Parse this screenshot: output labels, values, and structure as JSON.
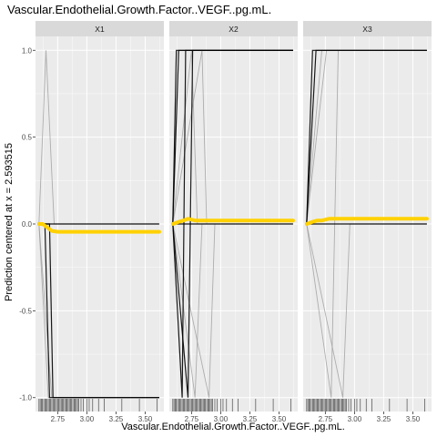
{
  "chart_data": {
    "type": "line",
    "title": "Vascular.Endothelial.Growth.Factor..VEGF..pg.mL.",
    "xlabel": "Vascular.Endothelial.Growth.Factor..VEGF..pg.mL.",
    "ylabel": "Prediction centered at x = 2.593515",
    "xlim": [
      2.56,
      3.66
    ],
    "ylim": [
      -1.08,
      1.08
    ],
    "x_ticks": [
      2.75,
      3.0,
      3.25,
      3.5
    ],
    "x_tick_labels": [
      "2.75",
      "3.00",
      "3.25",
      "3.50"
    ],
    "y_ticks": [
      -1.0,
      -0.5,
      0.0,
      0.5,
      1.0
    ],
    "y_tick_labels": [
      "-1.0",
      "-0.5",
      "0.0",
      "0.5",
      "1.0"
    ],
    "grid": true,
    "colors": {
      "panel_bg": "#ebebeb",
      "grid_major": "#ffffff",
      "strip_bg": "#d9d9d9",
      "ice_dark": "#000000",
      "ice_light": "#9e9e9e",
      "pdp": "#ffd100",
      "rug": "#000000"
    },
    "facets": [
      {
        "label": "X1",
        "ice_lines": [
          {
            "shade": "dark",
            "points": [
              [
                2.59,
                0
              ],
              [
                2.64,
                0
              ],
              [
                2.68,
                -1
              ],
              [
                3.62,
                -1
              ]
            ]
          },
          {
            "shade": "dark",
            "points": [
              [
                2.59,
                0
              ],
              [
                2.68,
                0
              ],
              [
                2.71,
                -1
              ],
              [
                3.62,
                -1
              ]
            ]
          },
          {
            "shade": "dark",
            "points": [
              [
                2.59,
                0
              ],
              [
                3.62,
                0
              ]
            ]
          },
          {
            "shade": "light",
            "points": [
              [
                2.59,
                0
              ],
              [
                2.65,
                1
              ],
              [
                2.72,
                0
              ],
              [
                3.62,
                0
              ]
            ]
          },
          {
            "shade": "light",
            "points": [
              [
                2.59,
                0
              ],
              [
                2.67,
                -1
              ],
              [
                3.62,
                -1
              ]
            ]
          },
          {
            "shade": "light",
            "points": [
              [
                2.59,
                0
              ],
              [
                2.7,
                -1
              ],
              [
                2.78,
                -1
              ],
              [
                2.8,
                -1
              ],
              [
                3.62,
                -1
              ]
            ]
          }
        ],
        "pdp": [
          [
            2.59,
            0
          ],
          [
            2.62,
            0
          ],
          [
            2.66,
            -0.02
          ],
          [
            2.7,
            -0.04
          ],
          [
            2.75,
            -0.045
          ],
          [
            3.0,
            -0.045
          ],
          [
            3.62,
            -0.045
          ]
        ],
        "rug": [
          2.59,
          2.6,
          2.61,
          2.62,
          2.63,
          2.64,
          2.65,
          2.66,
          2.67,
          2.68,
          2.69,
          2.7,
          2.71,
          2.72,
          2.73,
          2.74,
          2.75,
          2.76,
          2.77,
          2.78,
          2.79,
          2.8,
          2.81,
          2.82,
          2.83,
          2.84,
          2.85,
          2.86,
          2.87,
          2.88,
          2.89,
          2.9,
          2.91,
          2.92,
          2.93,
          2.95,
          2.97,
          3.0,
          3.02,
          3.05,
          3.1,
          3.15,
          3.3,
          3.45,
          3.6
        ]
      },
      {
        "label": "X2",
        "ice_lines": [
          {
            "shade": "dark",
            "points": [
              [
                2.59,
                0
              ],
              [
                2.62,
                1
              ],
              [
                3.62,
                1
              ]
            ]
          },
          {
            "shade": "dark",
            "points": [
              [
                2.59,
                0
              ],
              [
                2.64,
                1
              ],
              [
                3.62,
                1
              ]
            ]
          },
          {
            "shade": "dark",
            "points": [
              [
                2.59,
                0
              ],
              [
                2.67,
                -1
              ],
              [
                2.7,
                1
              ],
              [
                3.62,
                1
              ]
            ]
          },
          {
            "shade": "dark",
            "points": [
              [
                2.59,
                0
              ],
              [
                2.72,
                -1
              ],
              [
                2.76,
                1
              ],
              [
                3.62,
                1
              ]
            ]
          },
          {
            "shade": "dark",
            "points": [
              [
                2.59,
                0
              ],
              [
                3.62,
                0
              ]
            ]
          },
          {
            "shade": "light",
            "points": [
              [
                2.59,
                0
              ],
              [
                2.75,
                1
              ],
              [
                2.8,
                0
              ],
              [
                3.62,
                0
              ]
            ]
          },
          {
            "shade": "light",
            "points": [
              [
                2.59,
                0
              ],
              [
                2.78,
                -1
              ],
              [
                2.84,
                0
              ],
              [
                3.62,
                0
              ]
            ]
          },
          {
            "shade": "light",
            "points": [
              [
                2.59,
                0
              ],
              [
                2.84,
                1
              ],
              [
                2.88,
                0
              ],
              [
                3.62,
                0
              ]
            ]
          },
          {
            "shade": "light",
            "points": [
              [
                2.59,
                0
              ],
              [
                2.9,
                -1
              ],
              [
                2.95,
                0
              ],
              [
                3.62,
                0
              ]
            ]
          }
        ],
        "pdp": [
          [
            2.59,
            0
          ],
          [
            2.63,
            0.01
          ],
          [
            2.68,
            0.02
          ],
          [
            2.72,
            0.03
          ],
          [
            2.78,
            0.02
          ],
          [
            2.85,
            0.02
          ],
          [
            3.0,
            0.02
          ],
          [
            3.62,
            0.02
          ]
        ],
        "rug": [
          2.59,
          2.6,
          2.61,
          2.62,
          2.63,
          2.64,
          2.65,
          2.66,
          2.67,
          2.68,
          2.69,
          2.7,
          2.71,
          2.72,
          2.73,
          2.74,
          2.75,
          2.76,
          2.77,
          2.78,
          2.79,
          2.8,
          2.81,
          2.82,
          2.83,
          2.84,
          2.85,
          2.86,
          2.87,
          2.88,
          2.89,
          2.9,
          2.91,
          2.92,
          2.93,
          2.95,
          2.97,
          3.0,
          3.02,
          3.05,
          3.1,
          3.15,
          3.3,
          3.45,
          3.6
        ]
      },
      {
        "label": "X3",
        "ice_lines": [
          {
            "shade": "dark",
            "points": [
              [
                2.59,
                0
              ],
              [
                2.64,
                1
              ],
              [
                3.62,
                1
              ]
            ]
          },
          {
            "shade": "dark",
            "points": [
              [
                2.59,
                0
              ],
              [
                2.67,
                1
              ],
              [
                3.62,
                1
              ]
            ]
          },
          {
            "shade": "dark",
            "points": [
              [
                2.59,
                0
              ],
              [
                3.62,
                0
              ]
            ]
          },
          {
            "shade": "light",
            "points": [
              [
                2.59,
                0
              ],
              [
                2.72,
                1
              ],
              [
                3.62,
                1
              ]
            ]
          },
          {
            "shade": "light",
            "points": [
              [
                2.59,
                0
              ],
              [
                2.76,
                1
              ],
              [
                3.62,
                1
              ]
            ]
          },
          {
            "shade": "light",
            "points": [
              [
                2.59,
                0
              ],
              [
                2.8,
                -1
              ],
              [
                2.86,
                1
              ],
              [
                3.62,
                1
              ]
            ]
          },
          {
            "shade": "light",
            "points": [
              [
                2.59,
                0
              ],
              [
                2.9,
                -1
              ],
              [
                2.96,
                0
              ],
              [
                3.62,
                0
              ]
            ]
          }
        ],
        "pdp": [
          [
            2.59,
            0
          ],
          [
            2.63,
            0.01
          ],
          [
            2.68,
            0.02
          ],
          [
            2.72,
            0.02
          ],
          [
            2.78,
            0.03
          ],
          [
            2.9,
            0.03
          ],
          [
            3.62,
            0.03
          ]
        ],
        "rug": [
          2.59,
          2.6,
          2.61,
          2.62,
          2.63,
          2.64,
          2.65,
          2.66,
          2.67,
          2.68,
          2.69,
          2.7,
          2.71,
          2.72,
          2.73,
          2.74,
          2.75,
          2.76,
          2.77,
          2.78,
          2.79,
          2.8,
          2.81,
          2.82,
          2.83,
          2.84,
          2.85,
          2.86,
          2.87,
          2.88,
          2.89,
          2.9,
          2.91,
          2.92,
          2.93,
          2.95,
          2.97,
          3.0,
          3.02,
          3.05,
          3.1,
          3.15,
          3.3,
          3.45,
          3.6
        ]
      }
    ]
  }
}
